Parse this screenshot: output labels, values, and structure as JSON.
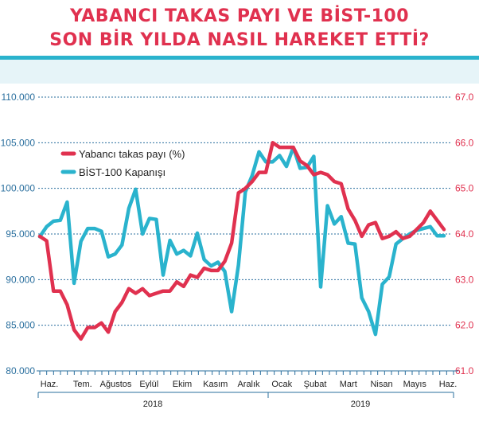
{
  "title_line1": "YABANCI TAKAS PAYI VE BİST-100",
  "title_line2": "SON BİR YILDA NASIL HAREKET ETTİ?",
  "colors": {
    "foreign_share": "#e0314f",
    "bist": "#2ab3cd",
    "title": "#e0314f",
    "grid": "#2a6f9e"
  },
  "chart_data": {
    "type": "line",
    "title": "YABANCI TAKAS PAYI VE BİST-100 SON BİR YILDA NASIL HAREKET ETTİ?",
    "left_axis": {
      "range": [
        80000,
        110000
      ],
      "ticks": [
        "80.000",
        "85.000",
        "90.000",
        "95.000",
        "100.000",
        "105.000",
        "110.000"
      ]
    },
    "right_axis": {
      "range": [
        61.0,
        67.0
      ],
      "ticks": [
        "61.0",
        "62.0",
        "63.0",
        "64.0",
        "65.0",
        "66.0",
        "67.0"
      ]
    },
    "x_labels": [
      "Haz.",
      "Tem.",
      "Ağustos",
      "Eylül",
      "Ekim",
      "Kasım",
      "Aralık",
      "Ocak",
      "Şubat",
      "Mart",
      "Nisan",
      "Mayıs",
      "Haz."
    ],
    "years": [
      "2018",
      "2019"
    ],
    "legend": {
      "position": "top-left",
      "items": [
        "Yabancı takas payı (%)",
        "BİST-100 Kapanışı"
      ]
    },
    "series": [
      {
        "name": "Yabancı takas payı (%)",
        "axis": "right",
        "values": [
          63.95,
          63.85,
          62.75,
          62.75,
          62.45,
          61.9,
          61.7,
          61.95,
          61.95,
          62.05,
          61.85,
          62.3,
          62.5,
          62.8,
          62.7,
          62.8,
          62.65,
          62.7,
          62.75,
          62.75,
          62.95,
          62.85,
          63.1,
          63.05,
          63.25,
          63.2,
          63.2,
          63.4,
          63.8,
          64.9,
          65.0,
          65.15,
          65.35,
          65.35,
          66.0,
          65.9,
          65.9,
          65.9,
          65.6,
          65.5,
          65.3,
          65.35,
          65.3,
          65.15,
          65.1,
          64.55,
          64.3,
          63.95,
          64.2,
          64.25,
          63.9,
          63.95,
          64.05,
          63.9,
          63.95,
          64.1,
          64.25,
          64.5,
          64.3,
          64.1
        ]
      },
      {
        "name": "BİST-100 Kapanışı",
        "axis": "left",
        "values": [
          94.7,
          95.8,
          96.4,
          96.5,
          98.5,
          89.6,
          94.2,
          95.6,
          95.6,
          95.3,
          92.5,
          92.8,
          93.8,
          97.8,
          99.9,
          95.0,
          96.7,
          96.6,
          90.5,
          94.3,
          92.8,
          93.2,
          92.6,
          95.1,
          92.2,
          91.5,
          91.9,
          90.9,
          86.5,
          91.6,
          99.6,
          101.4,
          104.0,
          102.9,
          102.9,
          103.6,
          102.4,
          104.5,
          102.2,
          102.3,
          103.5,
          89.2,
          98.1,
          96.1,
          96.9,
          94.0,
          93.9,
          88.0,
          86.5,
          84.0,
          89.5,
          90.3,
          93.9,
          94.5,
          95.0,
          95.4,
          95.6,
          95.8,
          94.8,
          94.8
        ]
      }
    ]
  }
}
